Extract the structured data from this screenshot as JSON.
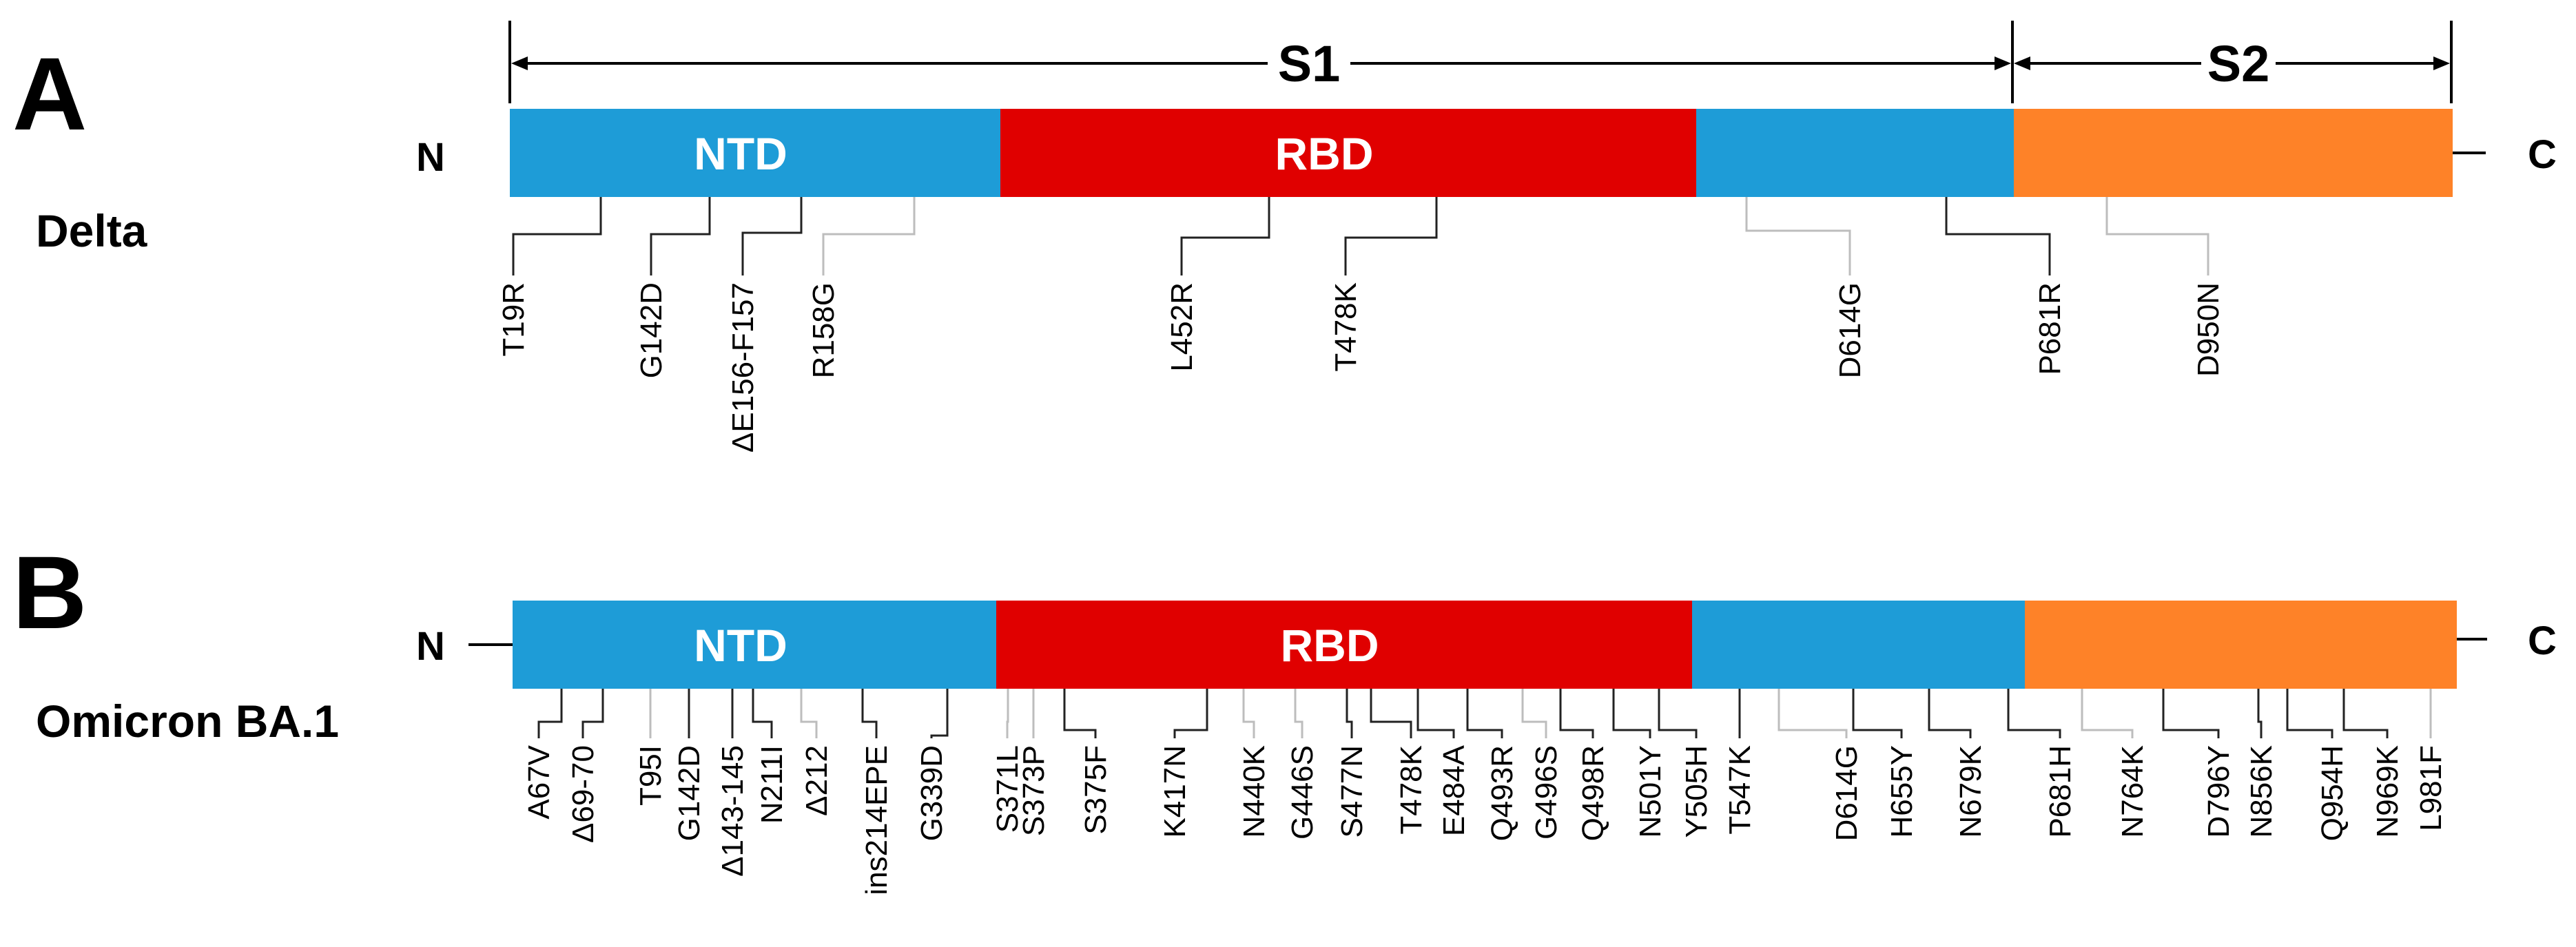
{
  "colors": {
    "blue": "#1e9cd7",
    "red": "#e00000",
    "orange": "#fe8228",
    "leader_dark": "#222222",
    "leader_light": "#bdbdbd"
  },
  "terminus": {
    "n": "N",
    "c": "C"
  },
  "spans": {
    "s1": "S1",
    "s2": "S2"
  },
  "panels": [
    {
      "letter": "A",
      "variant": "Delta",
      "domains": {
        "ntd": "NTD",
        "rbd": "RBD"
      },
      "mutations": [
        "T19R",
        "G142D",
        "ΔE156-F157",
        "R158G",
        "L452R",
        "T478K",
        "D614G",
        "P681R",
        "D950N"
      ]
    },
    {
      "letter": "B",
      "variant": "Omicron BA.1",
      "domains": {
        "ntd": "NTD",
        "rbd": "RBD"
      },
      "mutations": [
        "A67V",
        "Δ69-70",
        "T95I",
        "G142D",
        "Δ143-145",
        "N211I",
        "Δ212",
        "ins214EPE",
        "G339D",
        "S371L",
        "S373P",
        "S375F",
        "K417N",
        "N440K",
        "G446S",
        "S477N",
        "T478K",
        "E484A",
        "Q493R",
        "G496S",
        "Q498R",
        "N501Y",
        "Y505H",
        "T547K",
        "D614G",
        "H655Y",
        "N679K",
        "P681H",
        "N764K",
        "D796Y",
        "N856K",
        "Q954H",
        "N969K",
        "L981F"
      ]
    }
  ]
}
